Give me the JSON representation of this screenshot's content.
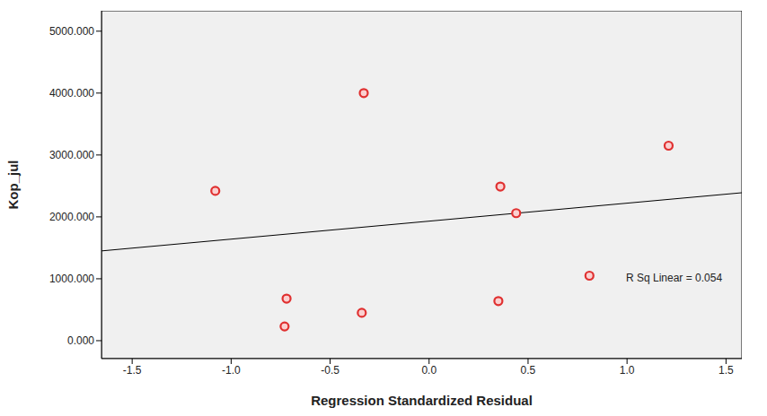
{
  "chart_data": {
    "type": "scatter",
    "x_label": "Regression Standardized Residual",
    "y_label": "Kop_jul",
    "x": [
      -1.08,
      -0.72,
      -0.73,
      -0.33,
      -0.34,
      0.36,
      0.44,
      0.35,
      0.81,
      1.21
    ],
    "values": [
      2420,
      680,
      230,
      4000,
      450,
      2490,
      2060,
      640,
      1050,
      3150
    ],
    "color": "#e03030",
    "marker": "circle",
    "xlim": [
      -1.655,
      1.58
    ],
    "ylim": [
      -290,
      5330
    ],
    "xticks": [
      {
        "value": -1.5,
        "label": "-1.5"
      },
      {
        "value": -1,
        "label": "-1.0"
      },
      {
        "value": -0.5,
        "label": "-0.5"
      },
      {
        "value": 0,
        "label": "0.0"
      },
      {
        "value": 0.5,
        "label": "0.5"
      },
      {
        "value": 1,
        "label": "1.0"
      },
      {
        "value": 1.5,
        "label": "1.5"
      }
    ],
    "yticks": [
      {
        "value": 0,
        "label": "0.000"
      },
      {
        "value": 1000,
        "label": "1000.000"
      },
      {
        "value": 2000,
        "label": "2000.000"
      },
      {
        "value": 3000,
        "label": "3000.000"
      },
      {
        "value": 4000,
        "label": "4000.000"
      },
      {
        "value": 5000,
        "label": "5000.000"
      }
    ],
    "fit_line": {
      "x": [
        -1.655,
        1.58
      ],
      "y": [
        1450,
        2390
      ],
      "color": "#000000"
    },
    "annotation": "R Sq Linear = 0.054",
    "grid": false
  }
}
